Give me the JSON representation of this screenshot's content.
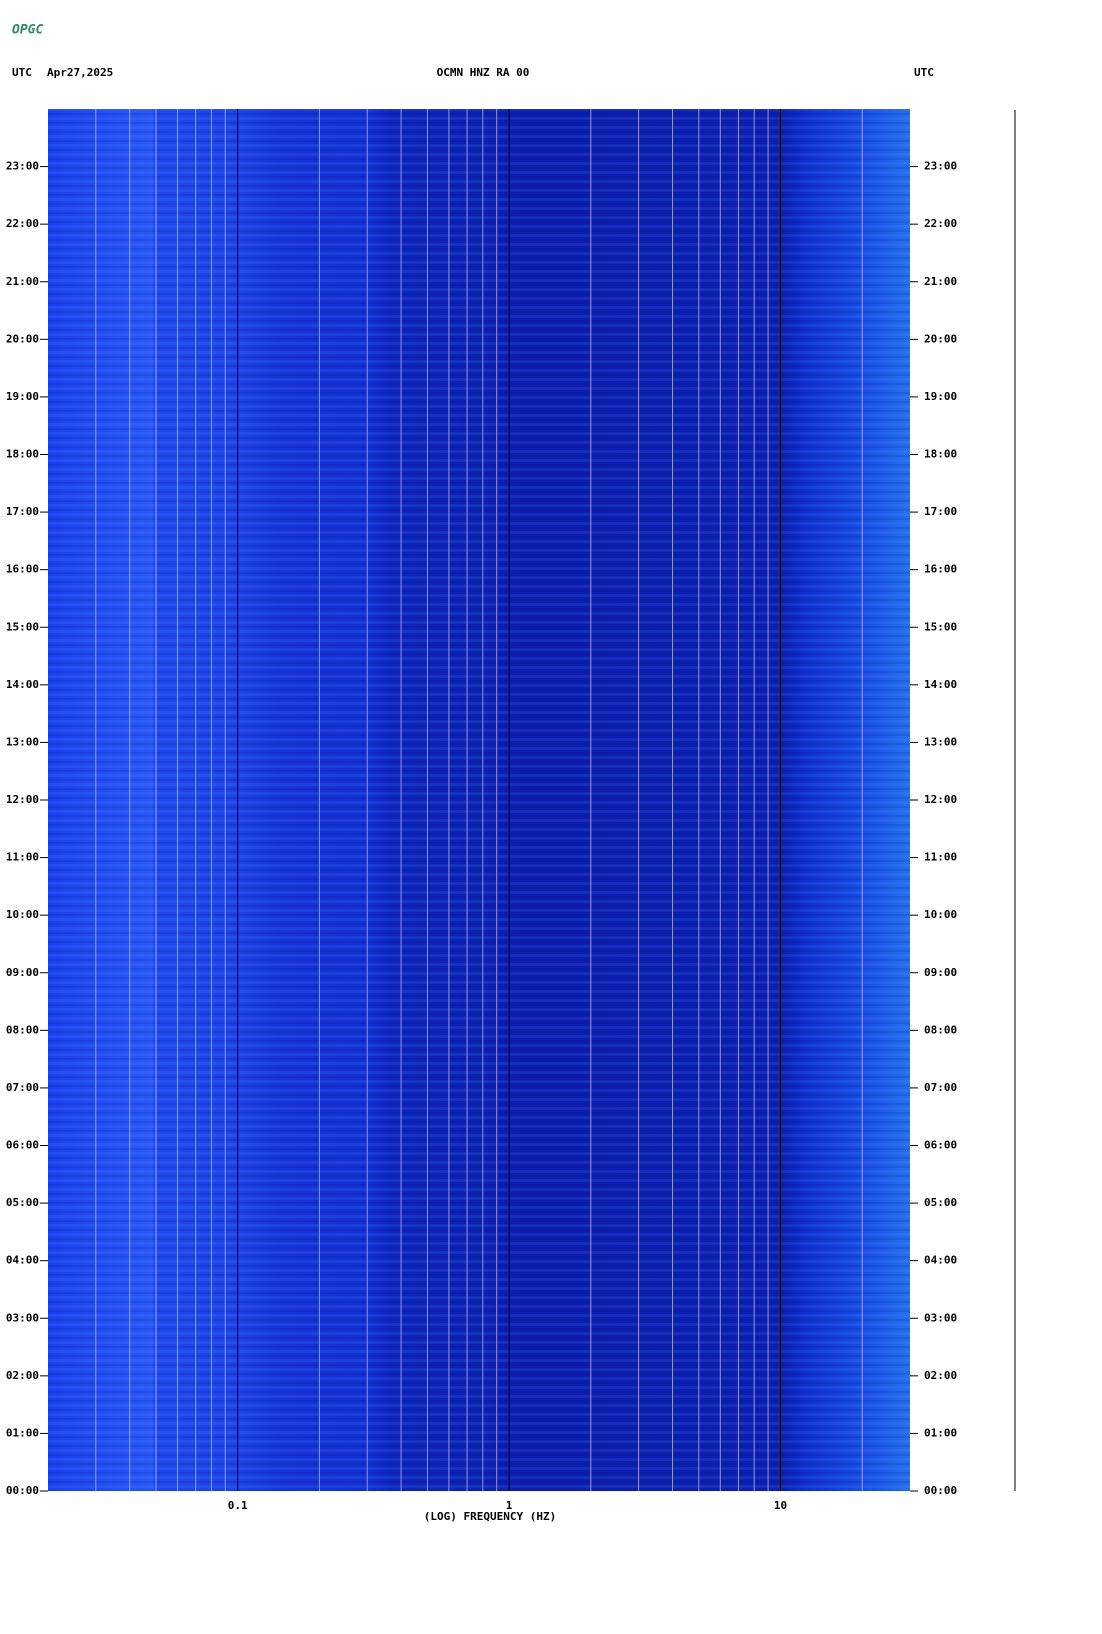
{
  "header": {
    "logo": "OPGC"
  },
  "chart_data": {
    "type": "spectrogram",
    "title": "OCMN HNZ RA 00",
    "time_zone_left": "UTC",
    "date": "Apr27,2025",
    "time_zone_right": "UTC",
    "xlabel": "(LOG) FREQUENCY (HZ)",
    "xscale": "log",
    "xlim": [
      0.02,
      30
    ],
    "xticks": [
      0.1,
      1,
      10
    ],
    "xminorticks": [
      0.03,
      0.04,
      0.05,
      0.06,
      0.07,
      0.08,
      0.09,
      0.2,
      0.3,
      0.4,
      0.5,
      0.6,
      0.7,
      0.8,
      0.9,
      2,
      3,
      4,
      5,
      6,
      7,
      8,
      9,
      20
    ],
    "ylim": [
      0,
      24
    ],
    "yticks": [
      {
        "value": 0,
        "label": "00:00"
      },
      {
        "value": 1,
        "label": "01:00"
      },
      {
        "value": 2,
        "label": "02:00"
      },
      {
        "value": 3,
        "label": "03:00"
      },
      {
        "value": 4,
        "label": "04:00"
      },
      {
        "value": 5,
        "label": "05:00"
      },
      {
        "value": 6,
        "label": "06:00"
      },
      {
        "value": 7,
        "label": "07:00"
      },
      {
        "value": 8,
        "label": "08:00"
      },
      {
        "value": 9,
        "label": "09:00"
      },
      {
        "value": 10,
        "label": "10:00"
      },
      {
        "value": 11,
        "label": "11:00"
      },
      {
        "value": 12,
        "label": "12:00"
      },
      {
        "value": 13,
        "label": "13:00"
      },
      {
        "value": 14,
        "label": "14:00"
      },
      {
        "value": 15,
        "label": "15:00"
      },
      {
        "value": 16,
        "label": "16:00"
      },
      {
        "value": 17,
        "label": "17:00"
      },
      {
        "value": 18,
        "label": "18:00"
      },
      {
        "value": 19,
        "label": "19:00"
      },
      {
        "value": 20,
        "label": "20:00"
      },
      {
        "value": 21,
        "label": "21:00"
      },
      {
        "value": 22,
        "label": "22:00"
      },
      {
        "value": 23,
        "label": "23:00"
      }
    ],
    "grid": true
  }
}
